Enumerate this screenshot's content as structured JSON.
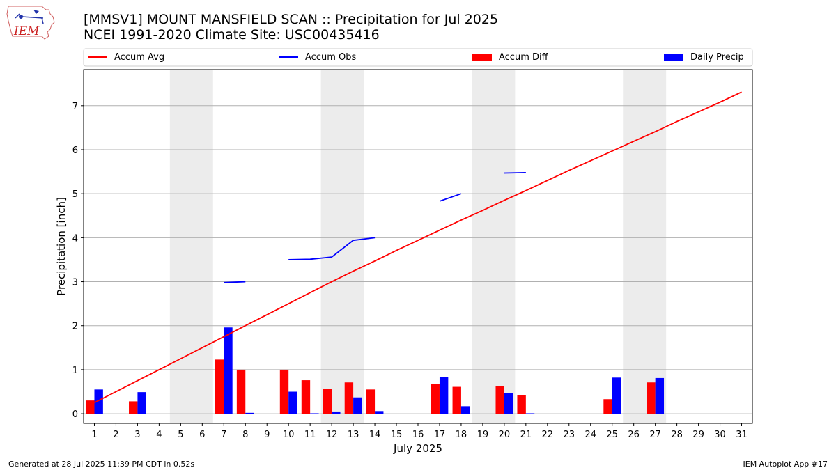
{
  "header": {
    "title_line1": "[MMSV1] MOUNT MANSFIELD SCAN :: Precipitation for Jul 2025",
    "title_line2": "NCEI 1991-2020 Climate Site: USC00435416",
    "logo_text": "IEM"
  },
  "footer": {
    "left": "Generated at 28 Jul 2025 11:39 PM CDT in 0.52s",
    "right": "IEM Autoplot App #17"
  },
  "colors": {
    "accum_avg": "#ff0000",
    "accum_obs": "#0000ff",
    "accum_diff": "#ff0000",
    "daily_precip": "#0000ff",
    "weekend": "#ececec",
    "grid": "#b0b0b0"
  },
  "chart_data": {
    "type": "bar",
    "title": "[MMSV1] MOUNT MANSFIELD SCAN :: Precipitation for Jul 2025",
    "subtitle": "NCEI 1991-2020 Climate Site: USC00435416",
    "xlabel": "July 2025",
    "ylabel": "Precipitation [inch]",
    "xlim": [
      0.5,
      31.5
    ],
    "ylim": [
      -0.22,
      7.82
    ],
    "grid": true,
    "legend_position": "top",
    "x_ticks": [
      1,
      2,
      3,
      4,
      5,
      6,
      7,
      8,
      9,
      10,
      11,
      12,
      13,
      14,
      15,
      16,
      17,
      18,
      19,
      20,
      21,
      22,
      23,
      24,
      25,
      26,
      27,
      28,
      29,
      30,
      31
    ],
    "y_ticks": [
      0,
      1,
      2,
      3,
      4,
      5,
      6,
      7
    ],
    "weekend_spans": [
      [
        4.5,
        6.5
      ],
      [
        11.5,
        13.5
      ],
      [
        18.5,
        20.5
      ],
      [
        25.5,
        27.5
      ]
    ],
    "legend": [
      "Accum Avg",
      "Accum Obs",
      "Accum Diff",
      "Daily Precip"
    ],
    "series": [
      {
        "name": "Accum Avg",
        "type": "line",
        "x": [
          1,
          2,
          3,
          4,
          5,
          6,
          7,
          8,
          9,
          10,
          11,
          12,
          13,
          14,
          15,
          16,
          17,
          18,
          19,
          20,
          21,
          22,
          23,
          24,
          25,
          26,
          27,
          28,
          29,
          30,
          31
        ],
        "values": [
          0.25,
          0.5,
          0.75,
          1.0,
          1.25,
          1.5,
          1.75,
          2.0,
          2.25,
          2.5,
          2.75,
          3.0,
          3.24,
          3.47,
          3.71,
          3.94,
          4.17,
          4.4,
          4.62,
          4.85,
          5.07,
          5.3,
          5.53,
          5.75,
          5.97,
          6.19,
          6.41,
          6.64,
          6.86,
          7.08,
          7.31
        ]
      },
      {
        "name": "Accum Obs",
        "type": "line",
        "segments": [
          {
            "x": [
              7,
              8
            ],
            "values": [
              2.98,
              3.0
            ]
          },
          {
            "x": [
              10,
              11,
              12,
              13,
              14
            ],
            "values": [
              3.5,
              3.51,
              3.56,
              3.94,
              4.0
            ]
          },
          {
            "x": [
              17,
              18
            ],
            "values": [
              4.83,
              5.0
            ]
          },
          {
            "x": [
              20,
              21
            ],
            "values": [
              5.47,
              5.48
            ]
          }
        ]
      },
      {
        "name": "Accum Diff",
        "type": "bar",
        "x": [
          1,
          3,
          7,
          8,
          10,
          11,
          12,
          13,
          14,
          17,
          18,
          20,
          21,
          25,
          27
        ],
        "values": [
          0.3,
          0.28,
          1.23,
          1.0,
          1.0,
          0.76,
          0.57,
          0.71,
          0.55,
          0.68,
          0.61,
          0.63,
          0.42,
          0.33,
          0.71
        ]
      },
      {
        "name": "Daily Precip",
        "type": "bar",
        "x": [
          1,
          3,
          7,
          8,
          10,
          11,
          12,
          13,
          14,
          17,
          18,
          20,
          21,
          25,
          27
        ],
        "values": [
          0.55,
          0.49,
          1.96,
          0.02,
          0.5,
          0.01,
          0.05,
          0.37,
          0.06,
          0.83,
          0.17,
          0.47,
          0.01,
          0.82,
          0.81
        ]
      }
    ]
  }
}
